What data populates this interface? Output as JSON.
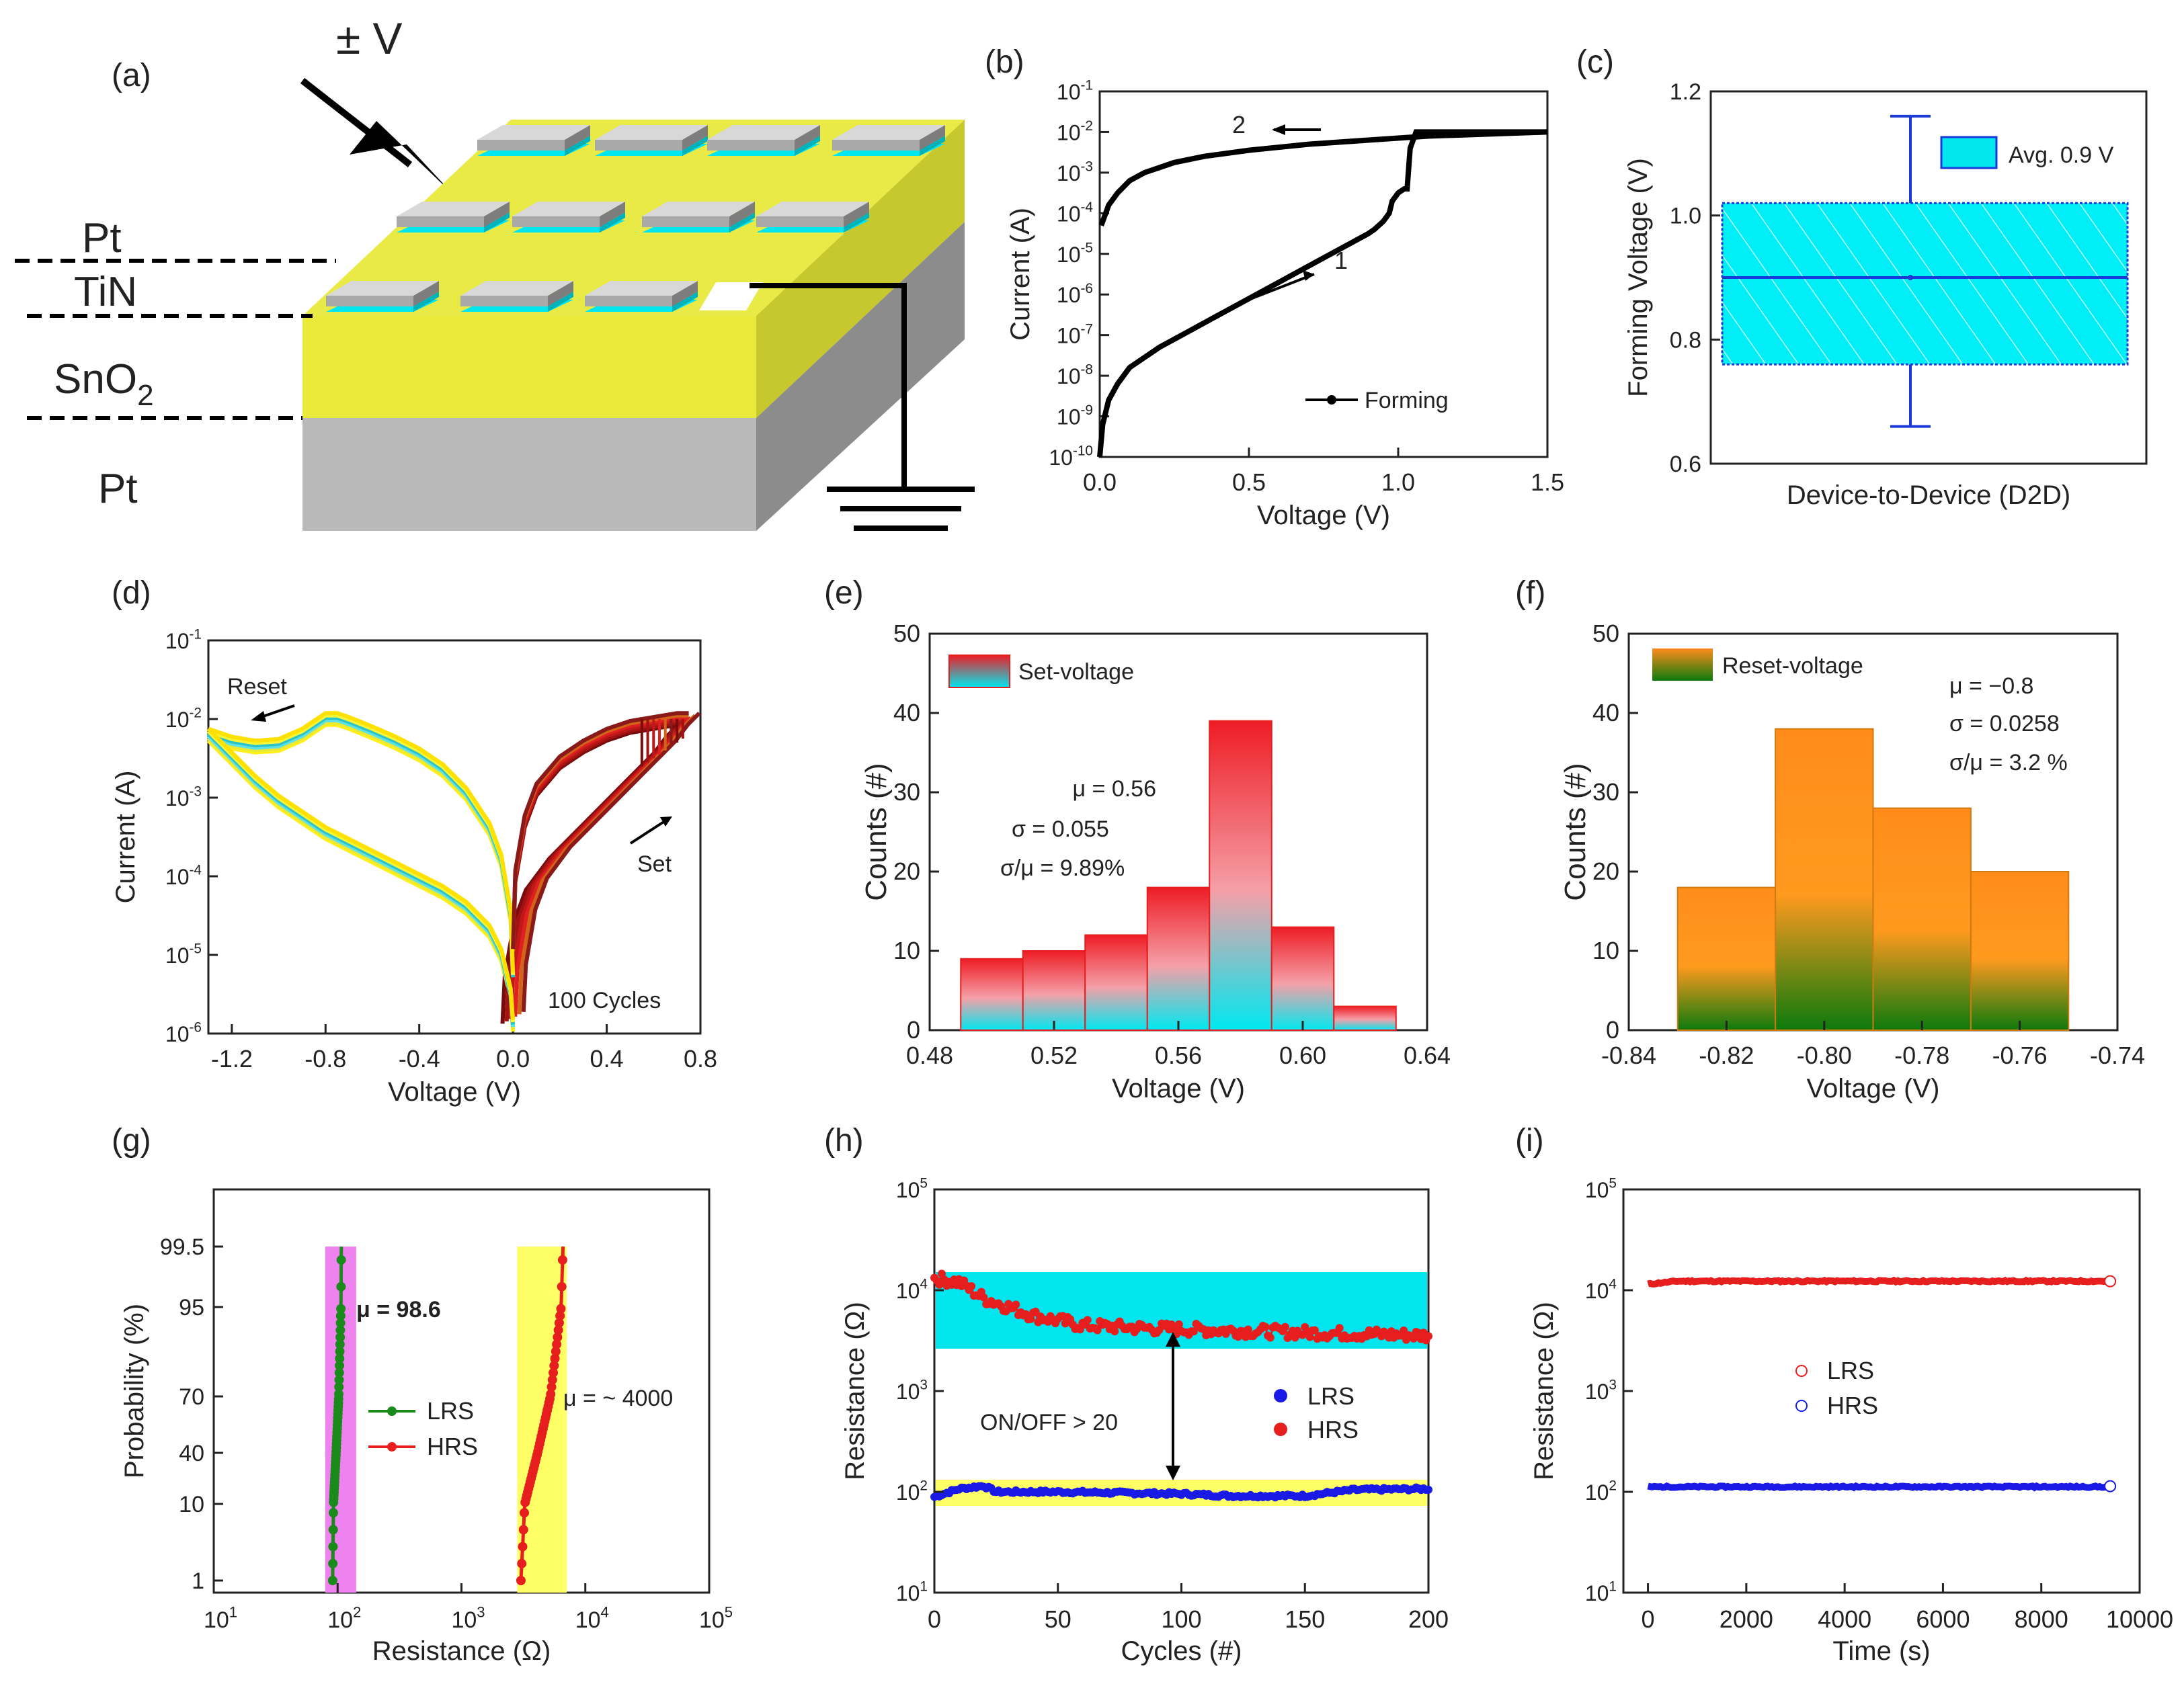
{
  "colors": {
    "cyan": "#00e5ee",
    "yellow": "#e8e84a",
    "red": "#e61e1e",
    "green": "#1a8a1a",
    "blue": "#1a1ae6",
    "orange": "#ff8c1a",
    "dark_green": "#0a6e0a",
    "magenta": "#ee82ee",
    "light_yellow": "#ffff66",
    "gray": "#b0b0b0"
  },
  "panel_a": {
    "label": "(a)",
    "voltage_label": "± V",
    "layers": [
      "Pt",
      "TiN",
      "SnO",
      "Pt"
    ],
    "sno_sub": "2"
  },
  "chart_data": [
    {
      "id": "b",
      "label": "(b)",
      "type": "line",
      "xlabel": "Voltage (V)",
      "ylabel": "Current (A)",
      "xlim": [
        0,
        1.5
      ],
      "ylim_log10": [
        -10,
        -1
      ],
      "xticks": [
        "0.0",
        "0.5",
        "1.0",
        "1.5"
      ],
      "ytick_exponents": [
        "-10",
        "-9",
        "-8",
        "-7",
        "-6",
        "-5",
        "-4",
        "-3",
        "-2",
        "-1"
      ],
      "legend": "Forming",
      "annotations": [
        "1",
        "2"
      ],
      "series": [
        {
          "name": "forming-up",
          "x": [
            0.0,
            0.01,
            0.03,
            0.06,
            0.1,
            0.2,
            0.3,
            0.4,
            0.5,
            0.6,
            0.7,
            0.8,
            0.9,
            0.92,
            0.95,
            0.97,
            0.98,
            1.0,
            1.02,
            1.03,
            1.04,
            1.06,
            1.1,
            1.3,
            1.5
          ],
          "log_y": [
            -10,
            -9.2,
            -8.6,
            -8.2,
            -7.8,
            -7.3,
            -6.9,
            -6.5,
            -6.1,
            -5.7,
            -5.3,
            -4.9,
            -4.5,
            -4.4,
            -4.2,
            -4.0,
            -3.7,
            -3.5,
            -3.4,
            -3.4,
            -2.4,
            -2.0,
            -2.0,
            -2.0,
            -2.0
          ]
        },
        {
          "name": "forming-down",
          "x": [
            1.5,
            1.3,
            1.1,
            0.9,
            0.7,
            0.5,
            0.35,
            0.25,
            0.15,
            0.1,
            0.06,
            0.03,
            0.015,
            0.005
          ],
          "log_y": [
            -2.0,
            -2.05,
            -2.1,
            -2.2,
            -2.3,
            -2.45,
            -2.6,
            -2.75,
            -3.0,
            -3.2,
            -3.5,
            -3.8,
            -4.1,
            -4.3
          ]
        }
      ]
    },
    {
      "id": "c",
      "label": "(c)",
      "type": "box",
      "xlabel": "Device-to-Device (D2D)",
      "ylabel": "Forming Voltage (V)",
      "ylim": [
        0.6,
        1.2
      ],
      "yticks": [
        "0.6",
        "0.8",
        "1.0",
        "1.2"
      ],
      "legend": "Avg. 0.9 V",
      "box": {
        "whisker_low": 0.66,
        "q1": 0.76,
        "median": 0.9,
        "q3": 1.02,
        "whisker_high": 1.16,
        "mean": 0.9
      }
    },
    {
      "id": "d",
      "label": "(d)",
      "type": "line",
      "xlabel": "Voltage (V)",
      "ylabel": "Current (A)",
      "xlim": [
        -1.3,
        0.8
      ],
      "ylim_log10": [
        -6,
        -1
      ],
      "xticks": [
        "-1.2",
        "-0.8",
        "-0.4",
        "0.0",
        "0.4",
        "0.8"
      ],
      "ytick_exponents": [
        "-6",
        "-5",
        "-4",
        "-3",
        "-2",
        "-1"
      ],
      "annotations": [
        "Reset",
        "Set",
        "100 Cycles"
      ],
      "curves": {
        "neg_lrs": {
          "x": [
            0,
            -0.01,
            -0.05,
            -0.1,
            -0.2,
            -0.3,
            -0.4,
            -0.5,
            -0.6,
            -0.7,
            -0.75,
            -0.8,
            -0.9,
            -1.0,
            -1.1,
            -1.2,
            -1.3
          ],
          "log_y": [
            -5.3,
            -4.5,
            -3.8,
            -3.4,
            -2.95,
            -2.65,
            -2.45,
            -2.3,
            -2.17,
            -2.05,
            -2.0,
            -2.0,
            -2.2,
            -2.33,
            -2.35,
            -2.3,
            -2.2
          ]
        },
        "neg_hrs": {
          "x": [
            -1.3,
            -1.2,
            -1.1,
            -1.0,
            -0.9,
            -0.8,
            -0.7,
            -0.6,
            -0.5,
            -0.4,
            -0.3,
            -0.2,
            -0.1,
            -0.05,
            -0.01,
            0
          ],
          "log_y": [
            -2.2,
            -2.5,
            -2.8,
            -3.05,
            -3.25,
            -3.45,
            -3.6,
            -3.75,
            -3.9,
            -4.05,
            -4.2,
            -4.4,
            -4.7,
            -5.0,
            -5.5,
            -5.9
          ]
        },
        "pos_hrs": {
          "x": [
            0,
            0.01,
            0.05,
            0.1,
            0.2,
            0.3,
            0.4,
            0.5,
            0.55,
            0.6,
            0.65,
            0.7,
            0.75
          ],
          "log_y": [
            -5.8,
            -5.2,
            -4.5,
            -4.1,
            -3.7,
            -3.4,
            -3.1,
            -2.8,
            -2.65,
            -2.5,
            -2.35,
            -2.15,
            -2.0
          ]
        },
        "pos_lrs": {
          "x": [
            0.75,
            0.7,
            0.6,
            0.5,
            0.4,
            0.3,
            0.2,
            0.1,
            0.05,
            0.01,
            0
          ],
          "log_y": [
            -2.0,
            -2.0,
            -2.05,
            -2.1,
            -2.2,
            -2.35,
            -2.55,
            -2.9,
            -3.3,
            -4.0,
            -5.0
          ]
        }
      }
    },
    {
      "id": "e",
      "label": "(e)",
      "type": "bar",
      "xlabel": "Voltage (V)",
      "ylabel": "Counts (#)",
      "xlim": [
        0.48,
        0.64
      ],
      "ylim": [
        0,
        50
      ],
      "xticks": [
        "0.48",
        "0.52",
        "0.56",
        "0.60",
        "0.64"
      ],
      "yticks": [
        "0",
        "10",
        "20",
        "30",
        "40",
        "50"
      ],
      "legend": "Set-voltage",
      "stats": [
        "μ = 0.56",
        "σ = 0.055",
        "σ/μ = 9.89%"
      ],
      "bin_edges": [
        0.49,
        0.51,
        0.53,
        0.55,
        0.57,
        0.59,
        0.61,
        0.63
      ],
      "values": [
        9,
        10,
        12,
        18,
        39,
        13,
        3
      ]
    },
    {
      "id": "f",
      "label": "(f)",
      "type": "bar",
      "xlabel": "Voltage (V)",
      "ylabel": "Counts (#)",
      "xlim": [
        -0.84,
        -0.74
      ],
      "ylim": [
        0,
        50
      ],
      "xticks": [
        "-0.84",
        "-0.82",
        "-0.80",
        "-0.78",
        "-0.76",
        "-0.74"
      ],
      "yticks": [
        "0",
        "10",
        "20",
        "30",
        "40",
        "50"
      ],
      "legend": "Reset-voltage",
      "stats": [
        "μ = −0.8",
        "σ = 0.0258",
        "σ/μ = 3.2 %"
      ],
      "bin_edges": [
        -0.83,
        -0.81,
        -0.79,
        -0.77,
        -0.75
      ],
      "values": [
        18,
        38,
        28,
        20
      ]
    },
    {
      "id": "g",
      "label": "(g)",
      "type": "scatter",
      "xlabel": "Resistance (Ω)",
      "ylabel": "Probability (%)",
      "xlim_log10": [
        1,
        5
      ],
      "xtick_exponents": [
        "1",
        "2",
        "3",
        "4",
        "5"
      ],
      "yticks": [
        "1",
        "10",
        "40",
        "70",
        "95",
        "99.5"
      ],
      "legend": [
        "LRS",
        "HRS"
      ],
      "annotations": [
        "μ = 98.6",
        "μ = ~ 4000"
      ],
      "series": [
        {
          "name": "LRS",
          "log_x_range": [
            1.96,
            2.03
          ],
          "prob_range": [
            1,
            99.5
          ]
        },
        {
          "name": "HRS",
          "log_x_range": [
            3.48,
            3.82
          ],
          "prob_range": [
            1,
            99.5
          ]
        }
      ],
      "bands": [
        {
          "log_x": [
            1.9,
            2.15
          ]
        },
        {
          "log_x": [
            3.45,
            3.85
          ]
        }
      ]
    },
    {
      "id": "h",
      "label": "(h)",
      "type": "scatter",
      "xlabel": "Cycles (#)",
      "ylabel": "Resistance (Ω)",
      "xlim": [
        0,
        200
      ],
      "ylim_log10": [
        1,
        5
      ],
      "xticks": [
        "0",
        "50",
        "100",
        "150",
        "200"
      ],
      "ytick_exponents": [
        "1",
        "2",
        "3",
        "4",
        "5"
      ],
      "legend": [
        "LRS",
        "HRS"
      ],
      "annotations": [
        "ON/OFF > 20"
      ],
      "series": [
        {
          "name": "LRS",
          "anchors_x": [
            0,
            10,
            20,
            25,
            50,
            100,
            120,
            150,
            170,
            200
          ],
          "anchors_log_y": [
            1.95,
            2.03,
            2.06,
            2.0,
            2.0,
            1.98,
            1.96,
            1.96,
            2.02,
            2.03
          ]
        },
        {
          "name": "HRS",
          "anchors_x": [
            0,
            10,
            20,
            40,
            60,
            90,
            120,
            150,
            200
          ],
          "anchors_log_y": [
            4.12,
            4.08,
            3.92,
            3.75,
            3.65,
            3.62,
            3.6,
            3.58,
            3.55
          ]
        }
      ],
      "bands": [
        {
          "log_y": [
            3.42,
            4.18
          ]
        },
        {
          "log_y": [
            1.86,
            2.12
          ]
        }
      ]
    },
    {
      "id": "i",
      "label": "(i)",
      "type": "scatter",
      "xlabel": "Time (s)",
      "ylabel": "Resistance (Ω)",
      "xlim": [
        -500,
        10000
      ],
      "ylim_log10": [
        1,
        5
      ],
      "xticks": [
        "0",
        "2000",
        "4000",
        "6000",
        "8000",
        "10000"
      ],
      "ytick_exponents": [
        "1",
        "2",
        "3",
        "4",
        "5"
      ],
      "legend": [
        "LRS",
        "HRS"
      ],
      "series": [
        {
          "name": "upper",
          "x_range": [
            0,
            9400
          ],
          "log_y": 4.09
        },
        {
          "name": "lower",
          "x_range": [
            0,
            9400
          ],
          "log_y": 2.05
        }
      ]
    }
  ]
}
